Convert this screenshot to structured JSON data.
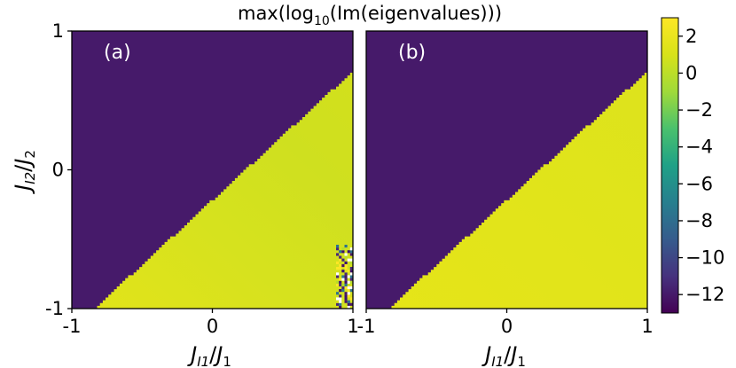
{
  "chart_data": {
    "type": "heatmap",
    "title": "max(log₁₀(Im(eigenvalues)))",
    "colormap": "viridis",
    "colorbar": {
      "range": [
        -13,
        3
      ],
      "ticks": [
        "2",
        "0",
        "−2",
        "−4",
        "−6",
        "−8",
        "−10",
        "−12"
      ],
      "tick_values": [
        2,
        0,
        -2,
        -4,
        -6,
        -8,
        -10,
        -12
      ]
    },
    "shared_ylabel": {
      "main": "J",
      "sub1": "I2",
      "sep": "/",
      "main2": "J",
      "sub2": "2"
    },
    "xlabel": {
      "main": "J",
      "sub1": "I1",
      "sep": "/",
      "main2": "J",
      "sub2": "1"
    },
    "panels": [
      {
        "label": "(a)",
        "xlim": [
          -1,
          1
        ],
        "ylim": [
          -1,
          1
        ],
        "x_ticks": [
          "-1",
          "0",
          "1"
        ],
        "y_ticks": [
          "1",
          "0",
          "-1"
        ],
        "boundary": "y ≈ 0.93·x − 0.22 (upper-left region ≈ −12.5, lower-right region ≈ 1.5 to 2.5)",
        "upper_region_value": -12.5,
        "lower_region_value": 1.8,
        "noisy_corner": "bottom-right (x ≈ 0.9–1, y ≈ −1 to −0.7)"
      },
      {
        "label": "(b)",
        "xlim": [
          -1,
          1
        ],
        "ylim": [
          -1,
          1
        ],
        "x_ticks": [
          "-1",
          "0",
          "1"
        ],
        "boundary": "y ≈ 0.93·x − 0.22 (upper-left region ≈ −12.5, lower-right region ≈ 2)",
        "upper_region_value": -12.5,
        "lower_region_value": 2.0
      }
    ]
  }
}
